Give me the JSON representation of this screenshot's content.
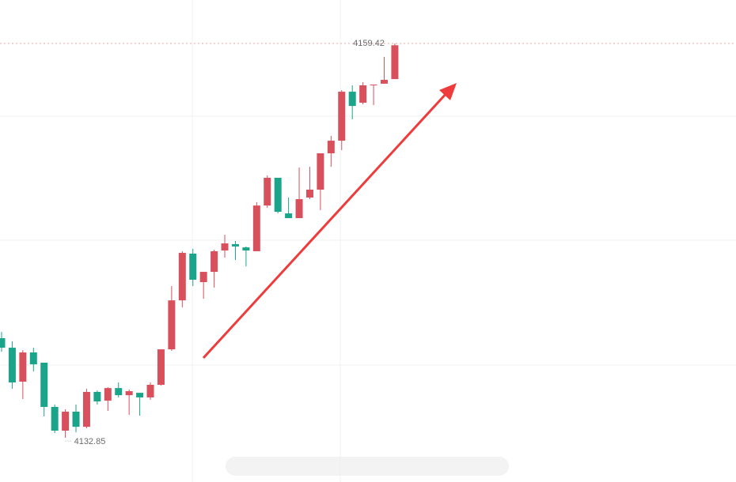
{
  "chart_data": {
    "type": "candlestick",
    "categories": [
      null,
      null,
      null,
      null,
      null,
      null,
      null,
      null,
      null,
      null,
      null,
      null,
      null,
      null,
      null,
      null,
      null,
      null,
      null,
      null,
      null,
      null,
      null,
      null,
      null,
      null,
      null,
      null,
      null,
      null,
      null,
      null,
      null,
      null,
      null,
      null,
      null,
      null
    ],
    "open": [
      4139.56,
      4138.92,
      4136.63,
      4138.6,
      4137.91,
      4134.93,
      4133.33,
      4134.61,
      4133.59,
      4135.94,
      4135.35,
      4136.2,
      4135.72,
      4135.88,
      4135.57,
      4136.42,
      4138.81,
      4142.11,
      4145.26,
      4143.34,
      4144.03,
      4145.47,
      4145.9,
      4145.68,
      4145.42,
      4148.5,
      4150.37,
      4147.97,
      4147.65,
      4149.04,
      4149.57,
      4152.02,
      4152.87,
      4156.17,
      4155.43,
      4156.6,
      4156.71,
      4157.02
    ],
    "high": [
      4139.98,
      4139.35,
      4138.76,
      4138.92,
      4137.91,
      4135.09,
      4134.77,
      4135.09,
      4136.15,
      4136.04,
      4136.26,
      4136.58,
      4136.1,
      4135.88,
      4136.58,
      4138.81,
      4143.07,
      4145.42,
      4145.58,
      4144.03,
      4145.52,
      4146.53,
      4146.11,
      4145.74,
      4148.72,
      4150.53,
      4150.37,
      4149.04,
      4151.06,
      4151.11,
      4152.02,
      4153.19,
      4156.28,
      4156.6,
      4156.81,
      4156.65,
      4158.52,
      4159.42
    ],
    "low": [
      4138.65,
      4136.15,
      4135.46,
      4137.32,
      4134.29,
      4133.17,
      4132.85,
      4133.22,
      4133.49,
      4135.09,
      4134.66,
      4135.57,
      4134.39,
      4134.34,
      4135.41,
      4136.36,
      4138.71,
      4141.64,
      4143.07,
      4142.22,
      4142.97,
      4144.99,
      4144.83,
      4144.4,
      4145.42,
      4148.35,
      4147.97,
      4147.65,
      4147.65,
      4148.93,
      4148.19,
      4151.11,
      4152.23,
      4154.31,
      4155.32,
      4155.27,
      4156.71,
      4157.02
    ],
    "close": [
      4138.92,
      4136.58,
      4138.6,
      4137.8,
      4134.93,
      4133.33,
      4134.61,
      4133.59,
      4135.94,
      4135.3,
      4136.2,
      4135.72,
      4135.99,
      4135.57,
      4136.42,
      4138.81,
      4142.11,
      4145.31,
      4143.5,
      4144.03,
      4145.42,
      4145.95,
      4145.74,
      4145.47,
      4148.5,
      4150.37,
      4148.08,
      4147.65,
      4148.93,
      4149.57,
      4152.02,
      4152.87,
      4156.17,
      4155.21,
      4156.6,
      4156.65,
      4156.97,
      4159.3
    ],
    "ylim": [
      4129.87,
      4162.35
    ],
    "up_color": "#d9505d",
    "down_color": "#1aa58a"
  }
}
